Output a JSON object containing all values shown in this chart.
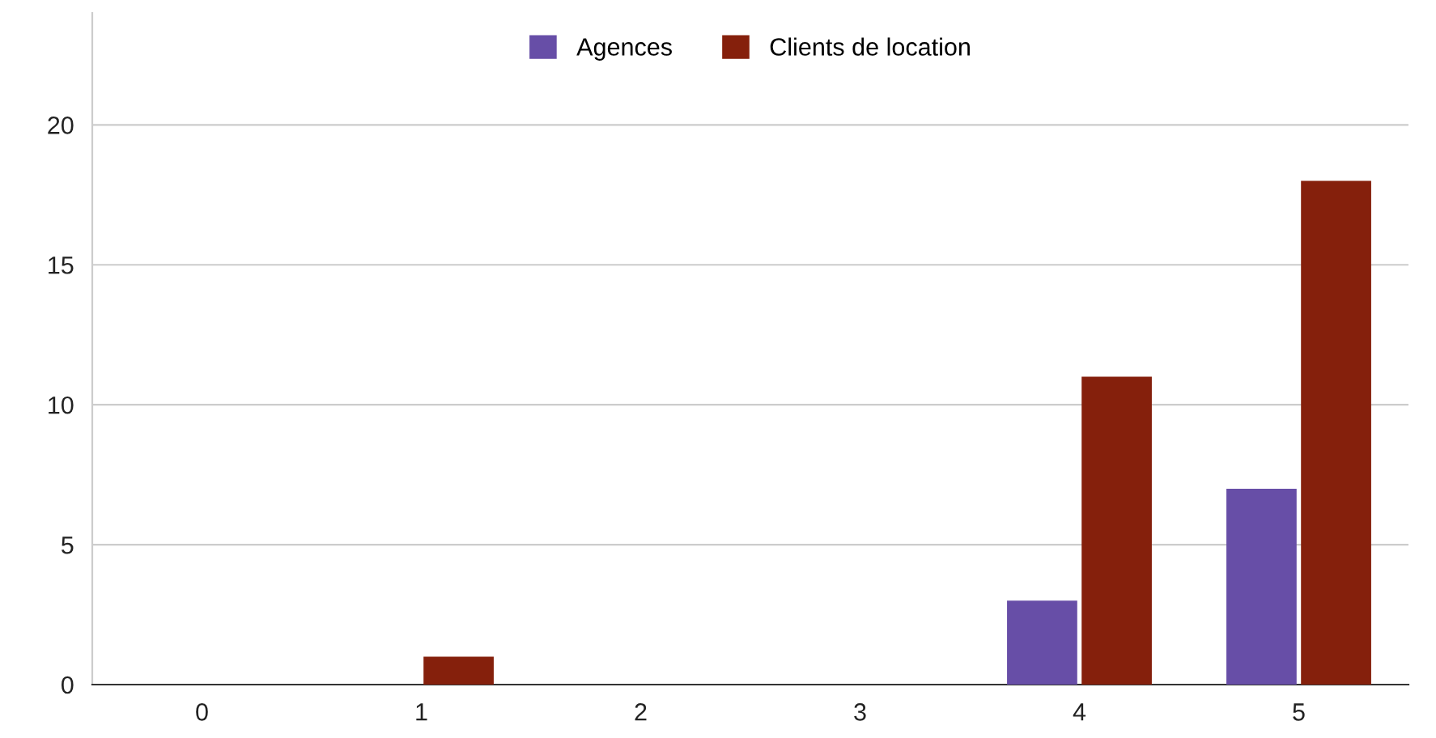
{
  "chart_data": {
    "type": "bar",
    "categories": [
      "0",
      "1",
      "2",
      "3",
      "4",
      "5"
    ],
    "series": [
      {
        "name": "Agences",
        "color": "#674ea7",
        "values": [
          0,
          0,
          0,
          0,
          3,
          7
        ]
      },
      {
        "name": "Clients de location",
        "color": "#85200c",
        "values": [
          0,
          1,
          0,
          0,
          11,
          18
        ]
      }
    ],
    "ylim": [
      0,
      24
    ],
    "yticks": [
      0,
      5,
      10,
      15,
      20
    ],
    "grid": "y",
    "legend": "top"
  }
}
